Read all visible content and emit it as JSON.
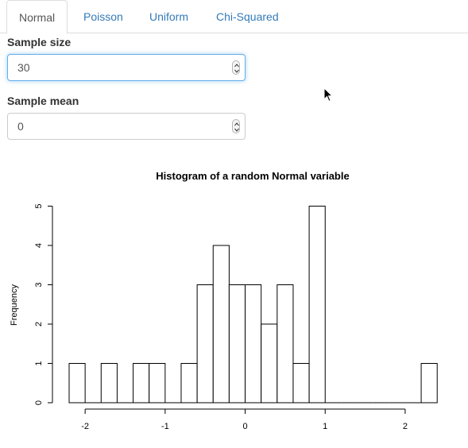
{
  "tabs": [
    {
      "label": "Normal",
      "active": true
    },
    {
      "label": "Poisson",
      "active": false
    },
    {
      "label": "Uniform",
      "active": false
    },
    {
      "label": "Chi-Squared",
      "active": false
    }
  ],
  "inputs": {
    "sample_size": {
      "label": "Sample size",
      "value": "30"
    },
    "sample_mean": {
      "label": "Sample mean",
      "value": "0"
    }
  },
  "colors": {
    "tab_link": "#337ab7",
    "tab_active": "#555555",
    "focus_border": "#66afe9"
  },
  "icons": {
    "cursor": "mouse-pointer-icon",
    "spinner": "up-down-spinner-icon"
  },
  "chart_data": {
    "type": "bar",
    "title": "Histogram of a random Normal variable",
    "xlabel": "",
    "ylabel": "Frequency",
    "bin_width": 0.2,
    "bins": [
      {
        "start": -2.2,
        "count": 1
      },
      {
        "start": -2.0,
        "count": 0
      },
      {
        "start": -1.8,
        "count": 1
      },
      {
        "start": -1.6,
        "count": 0
      },
      {
        "start": -1.4,
        "count": 1
      },
      {
        "start": -1.2,
        "count": 1
      },
      {
        "start": -1.0,
        "count": 0
      },
      {
        "start": -0.8,
        "count": 1
      },
      {
        "start": -0.6,
        "count": 3
      },
      {
        "start": -0.4,
        "count": 4
      },
      {
        "start": -0.2,
        "count": 3
      },
      {
        "start": 0.0,
        "count": 3
      },
      {
        "start": 0.2,
        "count": 2
      },
      {
        "start": 0.4,
        "count": 3
      },
      {
        "start": 0.6,
        "count": 1
      },
      {
        "start": 0.8,
        "count": 5
      },
      {
        "start": 1.0,
        "count": 0
      },
      {
        "start": 1.2,
        "count": 0
      },
      {
        "start": 1.4,
        "count": 0
      },
      {
        "start": 1.6,
        "count": 0
      },
      {
        "start": 1.8,
        "count": 0
      },
      {
        "start": 2.0,
        "count": 0
      },
      {
        "start": 2.2,
        "count": 1
      }
    ],
    "xticks": [
      {
        "value": -2,
        "label": "-2"
      },
      {
        "value": -1,
        "label": "-1"
      },
      {
        "value": 0,
        "label": "0"
      },
      {
        "value": 1,
        "label": "1"
      },
      {
        "value": 2,
        "label": "2"
      }
    ],
    "yticks": [
      {
        "value": 0,
        "label": "0"
      },
      {
        "value": 1,
        "label": "1"
      },
      {
        "value": 2,
        "label": "2"
      },
      {
        "value": 3,
        "label": "3"
      },
      {
        "value": 4,
        "label": "4"
      },
      {
        "value": 5,
        "label": "5"
      }
    ],
    "xlim": [
      -2.2,
      2.4
    ],
    "ylim": [
      0,
      5
    ],
    "grid": false
  }
}
